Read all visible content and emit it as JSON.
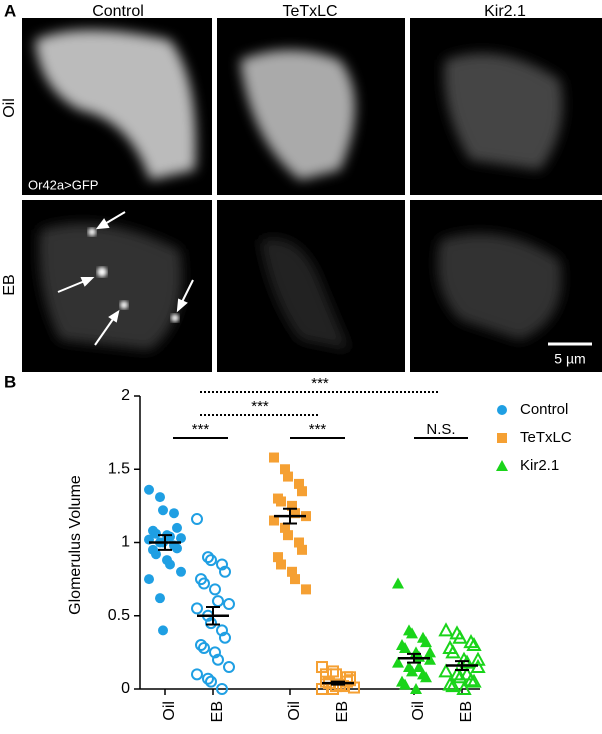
{
  "panel_a": {
    "label": "A",
    "columns": [
      "Control",
      "TeTxLC",
      "Kir2.1"
    ],
    "rows": [
      "Oil",
      "EB"
    ],
    "genotype": "Or42a>GFP",
    "scale_bar": "5 µm"
  },
  "chart_data": {
    "type": "dot",
    "label": "B",
    "ylabel": "Glomerulus Volume",
    "categories": [
      "Oil",
      "EB",
      "Oil",
      "EB",
      "Oil",
      "EB"
    ],
    "ylim": [
      0,
      2
    ],
    "yticks": [
      0,
      0.5,
      1,
      1.5,
      2
    ],
    "series": [
      {
        "name": "Control",
        "color": "#1f9fe3",
        "marker": "circle",
        "filled": [
          true,
          false
        ],
        "values": [
          [
            1.36,
            1.31,
            1.22,
            1.2,
            1.1,
            1.08,
            1.06,
            1.05,
            1.04,
            1.03,
            1.02,
            1.0,
            1.0,
            0.98,
            0.96,
            0.95,
            0.92,
            0.88,
            0.85,
            0.8,
            0.75,
            0.62,
            0.4
          ],
          [
            1.16,
            0.9,
            0.88,
            0.85,
            0.8,
            0.75,
            0.72,
            0.68,
            0.6,
            0.58,
            0.55,
            0.5,
            0.45,
            0.4,
            0.35,
            0.3,
            0.28,
            0.25,
            0.2,
            0.15,
            0.1,
            0.07,
            0.05,
            0.0
          ]
        ],
        "means": [
          1.0,
          0.5
        ],
        "sems": [
          0.05,
          0.06
        ]
      },
      {
        "name": "TeTxLC",
        "color": "#f5a033",
        "marker": "square",
        "filled": [
          true,
          false
        ],
        "values": [
          [
            1.58,
            1.5,
            1.45,
            1.4,
            1.35,
            1.3,
            1.28,
            1.25,
            1.2,
            1.18,
            1.15,
            1.1,
            1.05,
            1.0,
            0.95,
            0.9,
            0.85,
            0.8,
            0.75,
            0.68
          ],
          [
            0.15,
            0.12,
            0.1,
            0.08,
            0.06,
            0.05,
            0.04,
            0.03,
            0.02,
            0.01,
            0.0,
            0.0,
            0.02,
            0.05,
            0.08,
            0.1
          ]
        ],
        "means": [
          1.18,
          0.04
        ],
        "sems": [
          0.05,
          0.01
        ]
      },
      {
        "name": "Kir2.1",
        "color": "#1ad41a",
        "marker": "triangle",
        "filled": [
          true,
          false
        ],
        "values": [
          [
            0.72,
            0.4,
            0.38,
            0.35,
            0.32,
            0.3,
            0.28,
            0.25,
            0.22,
            0.2,
            0.18,
            0.15,
            0.12,
            0.1,
            0.08,
            0.05,
            0.03,
            0.0,
            0.15,
            0.25
          ],
          [
            0.4,
            0.38,
            0.35,
            0.32,
            0.3,
            0.28,
            0.25,
            0.2,
            0.18,
            0.15,
            0.12,
            0.1,
            0.08,
            0.06,
            0.05,
            0.03,
            0.02,
            0.0,
            0.1,
            0.2
          ]
        ],
        "means": [
          0.21,
          0.16
        ],
        "sems": [
          0.03,
          0.03
        ]
      }
    ],
    "annotations": [
      {
        "text": "***",
        "style": "dotted"
      },
      {
        "text": "***",
        "style": "dotted"
      },
      {
        "text": "***",
        "style": "solid"
      },
      {
        "text": "***",
        "style": "solid"
      },
      {
        "text": "N.S.",
        "style": "solid"
      }
    ]
  }
}
